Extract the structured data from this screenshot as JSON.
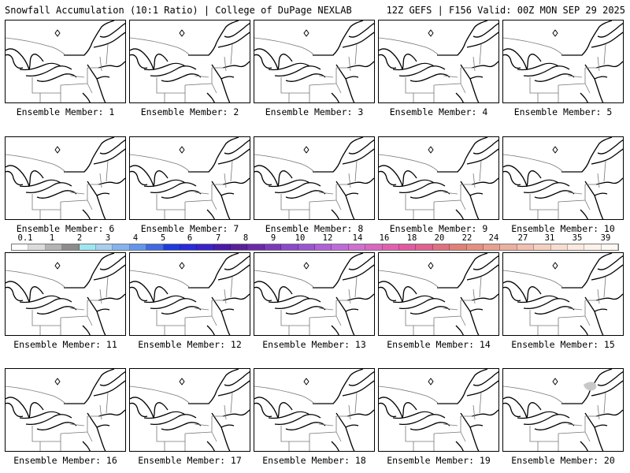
{
  "header": {
    "left": "Snowfall Accumulation (10:1 Ratio) | College of DuPage NEXLAB",
    "right": "12Z GEFS | F156 Valid: 00Z MON SEP 29 2025"
  },
  "members": [
    "Ensemble Member: 1",
    "Ensemble Member: 2",
    "Ensemble Member: 3",
    "Ensemble Member: 4",
    "Ensemble Member: 5",
    "Ensemble Member: 6",
    "Ensemble Member: 7",
    "Ensemble Member: 8",
    "Ensemble Member: 9",
    "Ensemble Member: 10",
    "Ensemble Member: 11",
    "Ensemble Member: 12",
    "Ensemble Member: 13",
    "Ensemble Member: 14",
    "Ensemble Member: 15",
    "Ensemble Member: 16",
    "Ensemble Member: 17",
    "Ensemble Member: 18",
    "Ensemble Member: 19",
    "Ensemble Member: 20"
  ],
  "colorbar": {
    "labels": [
      "0.1",
      "1",
      "2",
      "3",
      "4",
      "5",
      "6",
      "7",
      "8",
      "9",
      "10",
      "12",
      "14",
      "16",
      "18",
      "20",
      "22",
      "24",
      "27",
      "31",
      "35",
      "39"
    ],
    "colors": [
      "#ffffff",
      "#dcdcdc",
      "#b4b4b4",
      "#8c8c8c",
      "#9fe6f2",
      "#a9cfef",
      "#86b3ee",
      "#6495ed",
      "#4169e1",
      "#1e3cdc",
      "#2a2ad8",
      "#3a22c8",
      "#4a1aa8",
      "#5a2098",
      "#6a2aa8",
      "#7b3ab8",
      "#8b4ac8",
      "#9a55d0",
      "#b060d8",
      "#c06ad8",
      "#d070d0",
      "#d868c0",
      "#e060b0",
      "#e25aa0",
      "#e06090",
      "#e07080",
      "#e08078",
      "#e49080",
      "#e8a090",
      "#ecb0a0",
      "#f0c0b0",
      "#f4d0c0",
      "#f7ddd0",
      "#faeae0",
      "#fcf2ea",
      "#fef8f2"
    ]
  }
}
